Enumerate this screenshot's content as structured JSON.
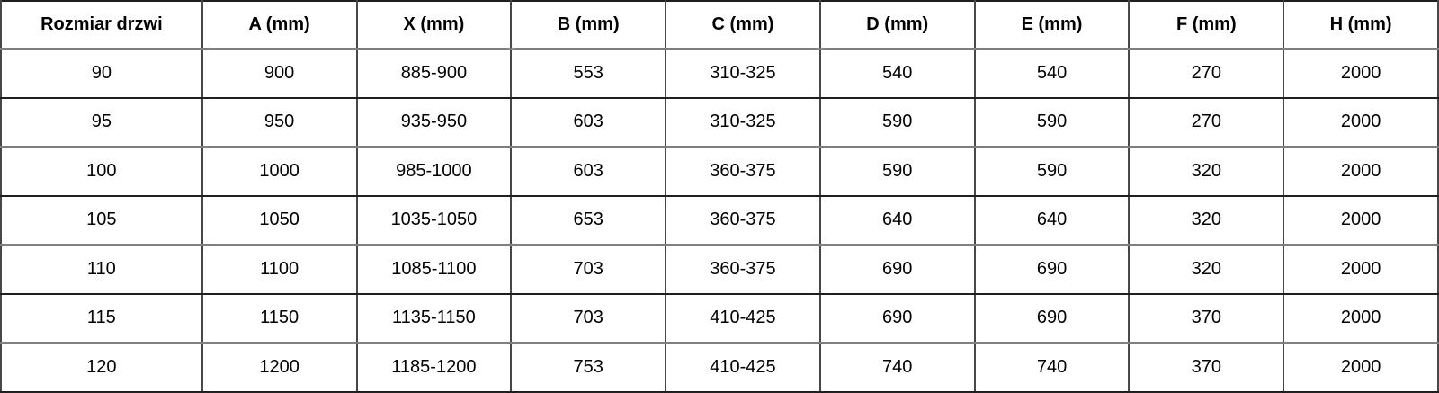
{
  "chart_data": {
    "type": "table",
    "columns": [
      "Rozmiar drzwi",
      "A (mm)",
      "X (mm)",
      "B (mm)",
      "C (mm)",
      "D (mm)",
      "E (mm)",
      "F (mm)",
      "H (mm)"
    ],
    "rows": [
      [
        "90",
        "900",
        "885-900",
        "553",
        "310-325",
        "540",
        "540",
        "270",
        "2000"
      ],
      [
        "95",
        "950",
        "935-950",
        "603",
        "310-325",
        "590",
        "590",
        "270",
        "2000"
      ],
      [
        "100",
        "1000",
        "985-1000",
        "603",
        "360-375",
        "590",
        "590",
        "320",
        "2000"
      ],
      [
        "105",
        "1050",
        "1035-1050",
        "653",
        "360-375",
        "640",
        "640",
        "320",
        "2000"
      ],
      [
        "110",
        "1100",
        "1085-1100",
        "703",
        "360-375",
        "690",
        "690",
        "320",
        "2000"
      ],
      [
        "115",
        "1150",
        "1135-1150",
        "703",
        "410-425",
        "690",
        "690",
        "370",
        "2000"
      ],
      [
        "120",
        "1200",
        "1185-1200",
        "753",
        "410-425",
        "740",
        "740",
        "370",
        "2000"
      ]
    ]
  },
  "colors": {
    "border_dark": "#1f1f1f",
    "border_gray": "#808080",
    "border_mid": "#474747",
    "text": "#000000",
    "background": "#ffffff"
  }
}
